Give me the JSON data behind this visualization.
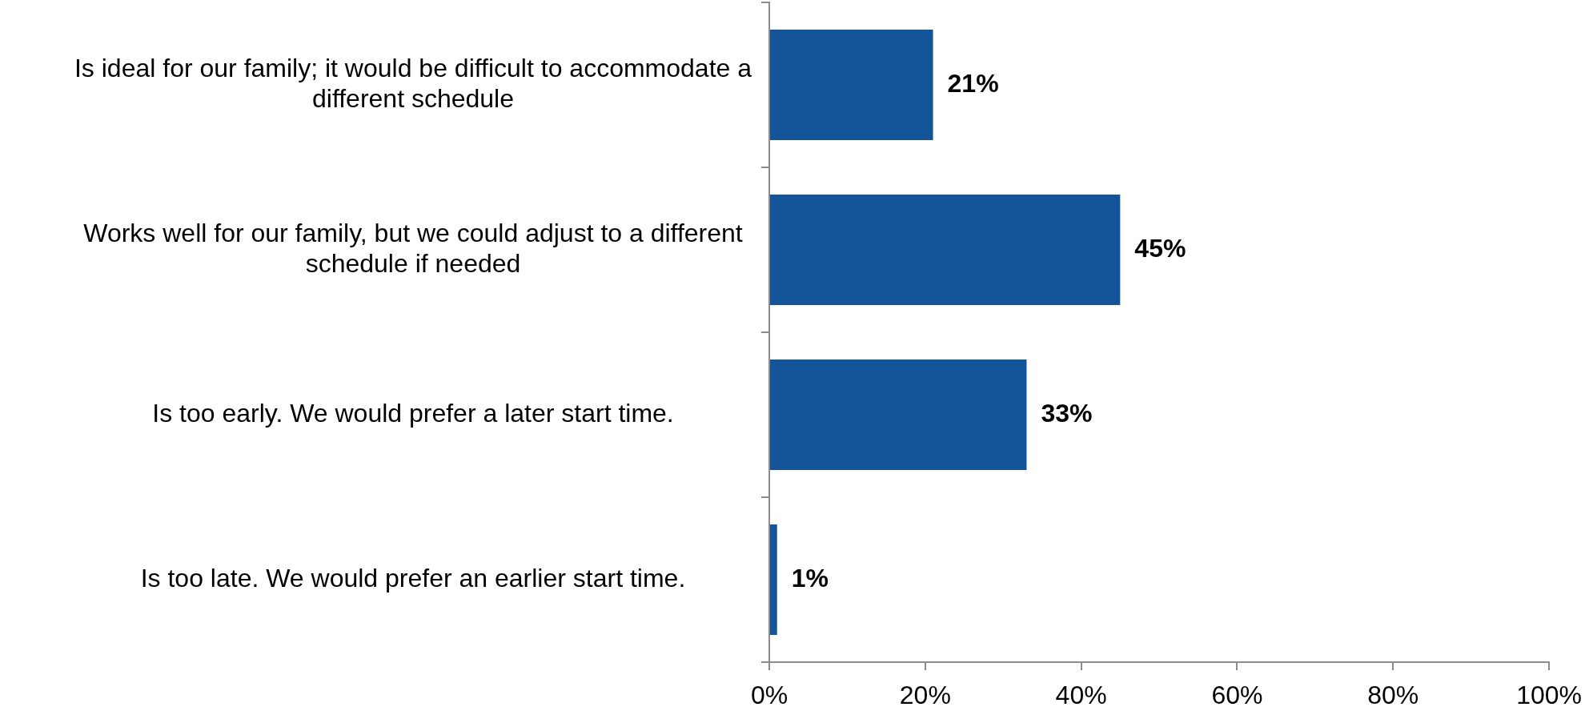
{
  "chart_data": {
    "type": "bar",
    "orientation": "horizontal",
    "categories": [
      "Is ideal for our family; it would be difficult to accommodate a different schedule",
      "Works well for our family, but we could adjust to a different schedule if needed",
      "Is too early. We would prefer a later start time.",
      "Is too late. We would prefer an earlier start time."
    ],
    "values": [
      21,
      45,
      33,
      1
    ],
    "color": "#14559a",
    "value_labels": [
      "21%",
      "45%",
      "33%",
      "1%"
    ],
    "xlim": [
      0,
      100
    ],
    "xticks": [
      {
        "value": 0,
        "label": "0%"
      },
      {
        "value": 20,
        "label": "20%"
      },
      {
        "value": 40,
        "label": "40%"
      },
      {
        "value": 60,
        "label": "60%"
      },
      {
        "value": 80,
        "label": "80%"
      },
      {
        "value": 100,
        "label": "100%"
      }
    ],
    "grid": false,
    "legend": false
  }
}
